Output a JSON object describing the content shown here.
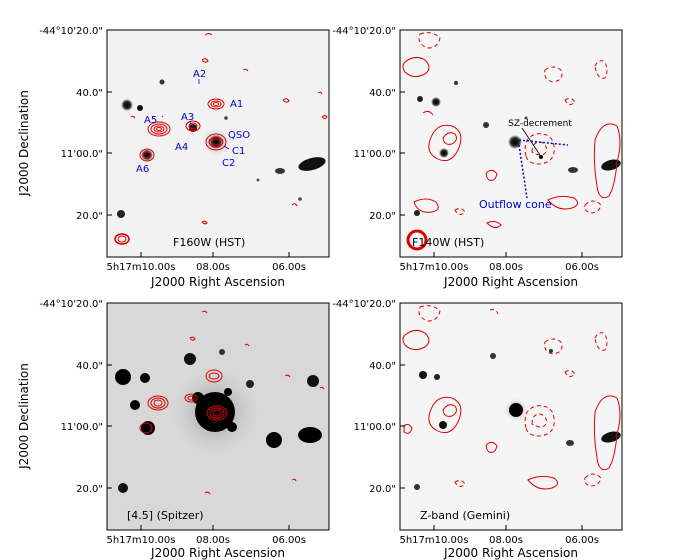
{
  "figure": {
    "x_axis_label": "J2000 Right Ascension",
    "y_axis_label": "J2000 Declination",
    "x_ticks": [
      "5h17m10.00s",
      "08.00s",
      "06.00s"
    ],
    "y_ticks": [
      "-44°10'20.0\"",
      "40.0\"",
      "11'00.0\"",
      "20.0\""
    ]
  },
  "panels": [
    {
      "id": "a",
      "title": "F160W (HST)",
      "labels": [
        "A2",
        "A1",
        "A5",
        "A3",
        "QSO",
        "A4",
        "C1",
        "C2",
        "A6"
      ]
    },
    {
      "id": "b",
      "title": "F140W (HST)",
      "labels": [
        "SZ-decrement",
        "Outflow cone"
      ]
    },
    {
      "id": "c",
      "title": "[4.5] (Spitzer)",
      "labels": []
    },
    {
      "id": "d",
      "title": "Z-band (Gemini)",
      "labels": []
    }
  ],
  "colors": {
    "contour": "#e00000",
    "annotation": "#0000cc",
    "source": "#000000"
  }
}
